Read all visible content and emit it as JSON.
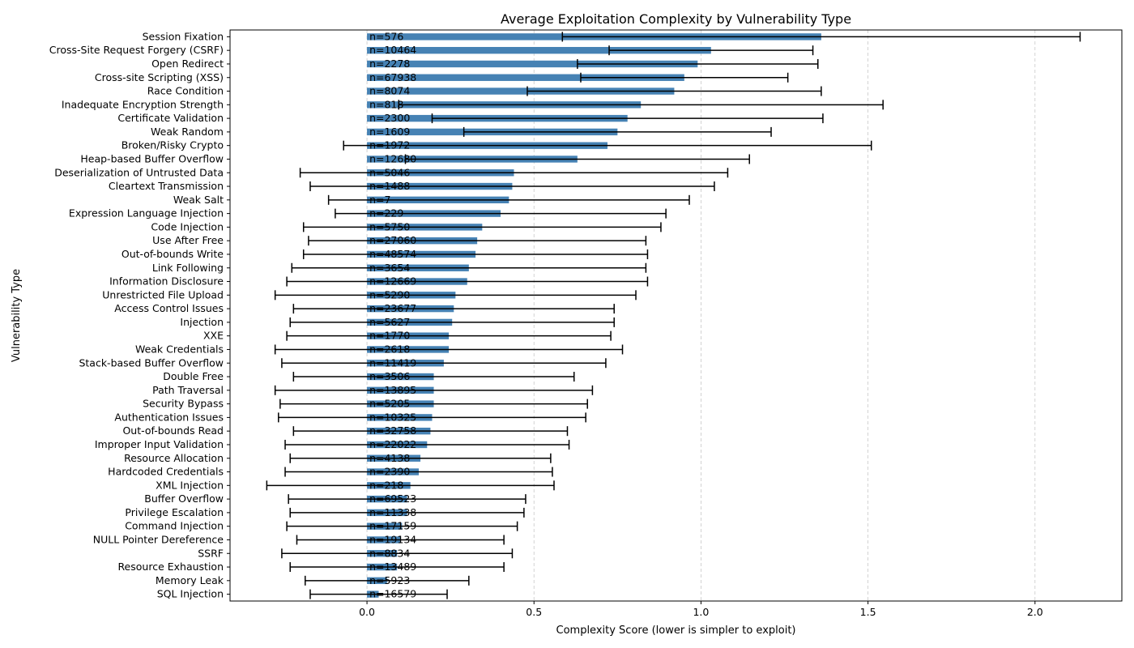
{
  "chart_data": {
    "type": "bar",
    "orientation": "horizontal",
    "title": "Average Exploitation Complexity by Vulnerability Type",
    "xlabel": "Complexity Score (lower is simpler to exploit)",
    "ylabel": "Vulnerability Type",
    "xlim": [
      -0.41,
      2.26
    ],
    "xticks": [
      0.0,
      0.5,
      1.0,
      1.5,
      2.0
    ],
    "xtick_labels": [
      "0.0",
      "0.5",
      "1.0",
      "1.5",
      "2.0"
    ],
    "grid": "x, dashed",
    "bar_color": "#4682b4",
    "errorbar_color": "#000000",
    "gridline_color": "#c8c8c8",
    "categories": [
      "Session Fixation",
      "Cross-Site Request Forgery (CSRF)",
      "Open Redirect",
      "Cross-site Scripting (XSS)",
      "Race Condition",
      "Inadequate Encryption Strength",
      "Certificate Validation",
      "Weak Random",
      "Broken/Risky Crypto",
      "Heap-based Buffer Overflow",
      "Deserialization of Untrusted Data",
      "Cleartext Transmission",
      "Weak Salt",
      "Expression Language Injection",
      "Code Injection",
      "Use After Free",
      "Out-of-bounds Write",
      "Link Following",
      "Information Disclosure",
      "Unrestricted File Upload",
      "Access Control Issues",
      "Injection",
      "XXE",
      "Weak Credentials",
      "Stack-based Buffer Overflow",
      "Double Free",
      "Path Traversal",
      "Security Bypass",
      "Authentication Issues",
      "Out-of-bounds Read",
      "Improper Input Validation",
      "Resource Allocation",
      "Hardcoded Credentials",
      "XML Injection",
      "Buffer Overflow",
      "Privilege Escalation",
      "Command Injection",
      "NULL Pointer Dereference",
      "SSRF",
      "Resource Exhaustion",
      "Memory Leak",
      "SQL Injection"
    ],
    "values": [
      1.36,
      1.03,
      0.99,
      0.95,
      0.92,
      0.82,
      0.78,
      0.75,
      0.72,
      0.63,
      0.44,
      0.435,
      0.425,
      0.4,
      0.345,
      0.33,
      0.325,
      0.305,
      0.3,
      0.265,
      0.26,
      0.255,
      0.245,
      0.245,
      0.23,
      0.2,
      0.2,
      0.2,
      0.195,
      0.19,
      0.18,
      0.16,
      0.155,
      0.13,
      0.12,
      0.12,
      0.105,
      0.1,
      0.09,
      0.09,
      0.06,
      0.035
    ],
    "error": [
      0.775,
      0.305,
      0.36,
      0.31,
      0.44,
      0.725,
      0.585,
      0.46,
      0.79,
      0.515,
      0.64,
      0.605,
      0.54,
      0.495,
      0.535,
      0.505,
      0.515,
      0.53,
      0.54,
      0.54,
      0.48,
      0.485,
      0.485,
      0.52,
      0.485,
      0.42,
      0.475,
      0.46,
      0.46,
      0.41,
      0.425,
      0.39,
      0.4,
      0.43,
      0.355,
      0.35,
      0.345,
      0.31,
      0.345,
      0.32,
      0.245,
      0.205
    ],
    "counts": [
      "n=576",
      "n=10464",
      "n=2278",
      "n=67938",
      "n=8074",
      "n=818",
      "n=2300",
      "n=1609",
      "n=1972",
      "n=12680",
      "n=5046",
      "n=1488",
      "n=7",
      "n=229",
      "n=5750",
      "n=27060",
      "n=48574",
      "n=3654",
      "n=12669",
      "n=5290",
      "n=23677",
      "n=5627",
      "n=1770",
      "n=2618",
      "n=11419",
      "n=3506",
      "n=13895",
      "n=5205",
      "n=10325",
      "n=32758",
      "n=22022",
      "n=4138",
      "n=2390",
      "n=218",
      "n=69523",
      "n=11338",
      "n=17159",
      "n=19134",
      "n=8834",
      "n=13489",
      "n=5923",
      "n=16579"
    ]
  }
}
